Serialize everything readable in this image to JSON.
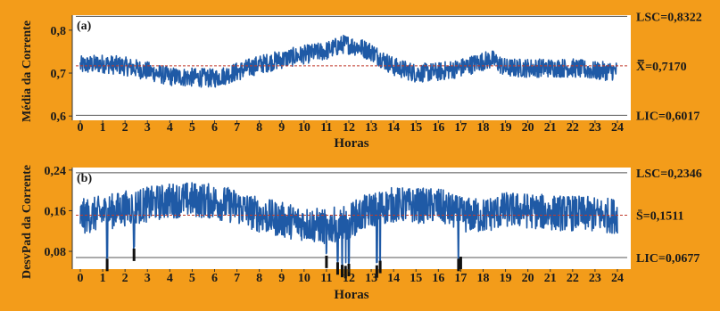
{
  "colors": {
    "background": "#F39C1A",
    "plot_background": "#FFFFFF",
    "series": "#1F5AA6",
    "center_line": "#C0392B",
    "limit_line": "#555555",
    "outlier": "#111111"
  },
  "chart_data": [
    {
      "type": "line",
      "panel_label": "(a)",
      "xlabel": "Horas",
      "ylabel": "Média da Corrente",
      "xlim": [
        0,
        24
      ],
      "ylim": [
        0.59,
        0.835
      ],
      "x_ticks": [
        "0",
        "1",
        "2",
        "3",
        "4",
        "5",
        "6",
        "7",
        "8",
        "9",
        "10",
        "11",
        "12",
        "13",
        "14",
        "15",
        "16",
        "17",
        "18",
        "19",
        "20",
        "21",
        "22",
        "23",
        "24"
      ],
      "y_ticks": [
        "0,6",
        "0,7",
        "0,8"
      ],
      "y_tick_values": [
        0.6,
        0.7,
        0.8
      ],
      "limits": {
        "LSC": 0.8322,
        "center": 0.717,
        "LIC": 0.6017
      },
      "limit_labels": {
        "LSC": "LSC=0,8322",
        "center": "X̿=0,7170",
        "LIC": "LIC=0,6017"
      },
      "trend": {
        "x": [
          0,
          1,
          2,
          3,
          4,
          5,
          6,
          7,
          8,
          9,
          10,
          11,
          11.8,
          12.5,
          13,
          14,
          15,
          16,
          17,
          18,
          18.4,
          19,
          20,
          21,
          22,
          23,
          24
        ],
        "y": [
          0.718,
          0.722,
          0.716,
          0.705,
          0.692,
          0.69,
          0.688,
          0.703,
          0.72,
          0.732,
          0.743,
          0.752,
          0.768,
          0.76,
          0.75,
          0.715,
          0.7,
          0.703,
          0.712,
          0.728,
          0.732,
          0.712,
          0.712,
          0.712,
          0.712,
          0.705,
          0.705
        ]
      },
      "band_halfwidth": 0.022,
      "dips": []
    },
    {
      "type": "line",
      "panel_label": "(b)",
      "xlabel": "Horas",
      "ylabel": "DesvPad da Corrente",
      "xlim": [
        0,
        24
      ],
      "ylim": [
        0.045,
        0.245
      ],
      "x_ticks": [
        "0",
        "1",
        "2",
        "3",
        "4",
        "5",
        "6",
        "7",
        "8",
        "9",
        "10",
        "11",
        "12",
        "13",
        "14",
        "15",
        "16",
        "17",
        "18",
        "19",
        "20",
        "21",
        "22",
        "23",
        "24"
      ],
      "y_ticks": [
        "0,08",
        "0,16",
        "0,24"
      ],
      "y_tick_values": [
        0.08,
        0.16,
        0.24
      ],
      "limits": {
        "LSC": 0.2346,
        "center": 0.1511,
        "LIC": 0.0677
      },
      "limit_labels": {
        "LSC": "LSC=0,2346",
        "center": "S̄=0,1511",
        "LIC": "LIC=0,0677"
      },
      "trend": {
        "x": [
          0,
          1,
          2,
          3,
          4,
          5,
          6,
          7,
          8,
          9,
          10,
          11,
          12,
          13,
          14,
          15,
          16,
          17,
          18,
          19,
          20,
          21,
          22,
          23,
          24
        ],
        "y": [
          0.148,
          0.155,
          0.165,
          0.172,
          0.18,
          0.182,
          0.178,
          0.168,
          0.152,
          0.142,
          0.135,
          0.128,
          0.14,
          0.162,
          0.172,
          0.17,
          0.17,
          0.152,
          0.15,
          0.162,
          0.16,
          0.156,
          0.155,
          0.152,
          0.15
        ]
      },
      "band_halfwidth": 0.035,
      "dips": [
        {
          "x": 1.2,
          "y": 0.062
        },
        {
          "x": 2.4,
          "y": 0.082
        },
        {
          "x": 11.0,
          "y": 0.068
        },
        {
          "x": 11.5,
          "y": 0.055
        },
        {
          "x": 11.7,
          "y": 0.05
        },
        {
          "x": 11.85,
          "y": 0.048
        },
        {
          "x": 12.0,
          "y": 0.052
        },
        {
          "x": 13.25,
          "y": 0.049
        },
        {
          "x": 13.4,
          "y": 0.058
        },
        {
          "x": 16.9,
          "y": 0.062
        },
        {
          "x": 17.0,
          "y": 0.066
        }
      ]
    }
  ]
}
